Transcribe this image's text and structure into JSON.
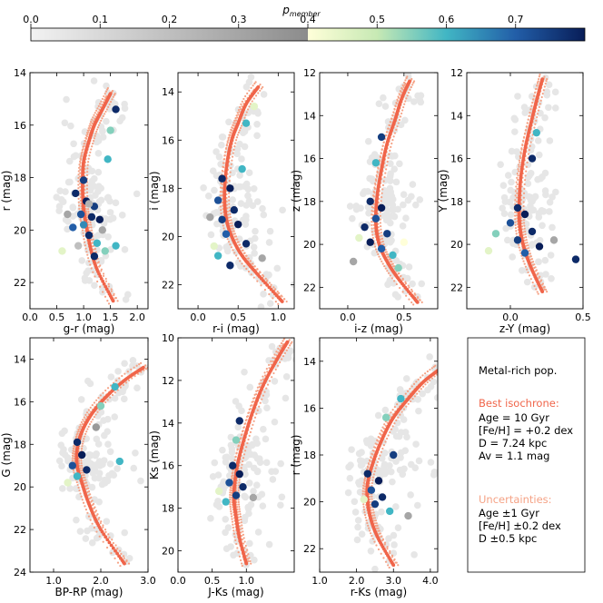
{
  "colorbar": {
    "label": "p_member",
    "label_main": "p",
    "label_sub": "member",
    "ticks": [
      "0.0",
      "0.1",
      "0.2",
      "0.3",
      "0.4",
      "0.5",
      "0.6",
      "0.7"
    ],
    "range": [
      0.0,
      0.8
    ],
    "split": 0.4
  },
  "colors": {
    "isochrone": "#f0654a",
    "isochrone_light": "#f5a285",
    "best_title": "#f0654a",
    "unc_title": "#f5a285",
    "background_star": "#e6e6e6"
  },
  "chart_data": [
    {
      "type": "scatter",
      "name": "panel-g-r",
      "xlabel": "g-r (mag)",
      "ylabel": "r (mag)",
      "xlim": [
        0.0,
        2.2
      ],
      "ylim": [
        23.0,
        14.0
      ],
      "xticks": [
        "0.0",
        "0.5",
        "1.0",
        "1.5",
        "2.0"
      ],
      "xtick_values": [
        0.0,
        0.5,
        1.0,
        1.5,
        2.0
      ],
      "yticks": [
        "14",
        "16",
        "18",
        "20",
        "22"
      ],
      "ytick_values": [
        14,
        16,
        18,
        20,
        22
      ],
      "members": [
        [
          0.85,
          18.6,
          0.78
        ],
        [
          1.05,
          18.9,
          0.8
        ],
        [
          1.2,
          19.1,
          0.75
        ],
        [
          0.95,
          19.4,
          0.72
        ],
        [
          1.15,
          19.5,
          0.78
        ],
        [
          1.0,
          19.8,
          0.65
        ],
        [
          1.3,
          19.6,
          0.8
        ],
        [
          0.8,
          19.9,
          0.7
        ],
        [
          1.1,
          20.2,
          0.78
        ],
        [
          1.25,
          20.5,
          0.6
        ],
        [
          1.4,
          20.8,
          0.55
        ],
        [
          1.2,
          21.0,
          0.78
        ],
        [
          1.5,
          16.2,
          0.55
        ],
        [
          1.6,
          15.4,
          0.78
        ],
        [
          1.45,
          17.3,
          0.6
        ],
        [
          1.0,
          18.1,
          0.75
        ],
        [
          0.7,
          19.4,
          0.3
        ],
        [
          1.6,
          20.6,
          0.6
        ],
        [
          0.6,
          20.8,
          0.45
        ],
        [
          1.35,
          20.0,
          0.3
        ],
        [
          1.1,
          19.0,
          0.25
        ],
        [
          0.9,
          20.6,
          0.2
        ]
      ],
      "iso_x": [
        1.55,
        1.25,
        1.12,
        1.05,
        1.0,
        0.98,
        1.0,
        1.1,
        1.2,
        1.35,
        1.5
      ],
      "iso_y": [
        22.7,
        21.5,
        20.6,
        19.8,
        19.2,
        18.3,
        17.4,
        16.6,
        16.0,
        15.4,
        14.8
      ]
    },
    {
      "type": "scatter",
      "name": "panel-r-i",
      "xlabel": "r-i (mag)",
      "ylabel": "i (mag)",
      "xlim": [
        -0.25,
        1.2
      ],
      "ylim": [
        23.0,
        13.2
      ],
      "xticks": [
        "0.0",
        "0.5",
        "1.0"
      ],
      "xtick_values": [
        0.0,
        0.5,
        1.0
      ],
      "yticks": [
        "14",
        "16",
        "18",
        "20",
        "22"
      ],
      "ytick_values": [
        14,
        16,
        18,
        20,
        22
      ],
      "members": [
        [
          0.3,
          17.6,
          0.78
        ],
        [
          0.4,
          18.0,
          0.8
        ],
        [
          0.25,
          18.5,
          0.72
        ],
        [
          0.45,
          18.9,
          0.78
        ],
        [
          0.3,
          19.3,
          0.75
        ],
        [
          0.5,
          19.5,
          0.8
        ],
        [
          0.35,
          19.9,
          0.7
        ],
        [
          0.6,
          20.3,
          0.78
        ],
        [
          0.25,
          20.8,
          0.6
        ],
        [
          0.4,
          21.2,
          0.78
        ],
        [
          0.55,
          17.2,
          0.6
        ],
        [
          0.6,
          15.3,
          0.6
        ],
        [
          0.7,
          14.6,
          0.45
        ],
        [
          0.8,
          20.9,
          0.3
        ],
        [
          0.15,
          19.2,
          0.3
        ],
        [
          0.2,
          20.4,
          0.45
        ]
      ],
      "iso_x": [
        1.05,
        0.75,
        0.55,
        0.42,
        0.35,
        0.33,
        0.36,
        0.42,
        0.5,
        0.6,
        0.75
      ],
      "iso_y": [
        22.7,
        21.6,
        20.8,
        20.0,
        19.2,
        18.2,
        17.0,
        16.0,
        15.3,
        14.5,
        13.8
      ]
    },
    {
      "type": "scatter",
      "name": "panel-i-z",
      "xlabel": "i-z (mag)",
      "ylabel": "z (mag)",
      "xlim": [
        -0.25,
        0.8
      ],
      "ylim": [
        23.0,
        12.0
      ],
      "xticks": [
        "0.0",
        "0.5"
      ],
      "xtick_values": [
        0.0,
        0.5
      ],
      "yticks": [
        "12",
        "14",
        "16",
        "18",
        "20",
        "22"
      ],
      "ytick_values": [
        12,
        14,
        16,
        18,
        20,
        22
      ],
      "members": [
        [
          0.2,
          18.0,
          0.78
        ],
        [
          0.3,
          18.3,
          0.8
        ],
        [
          0.25,
          18.8,
          0.72
        ],
        [
          0.15,
          19.2,
          0.78
        ],
        [
          0.35,
          19.5,
          0.75
        ],
        [
          0.2,
          19.9,
          0.8
        ],
        [
          0.3,
          20.2,
          0.7
        ],
        [
          0.4,
          20.5,
          0.6
        ],
        [
          0.1,
          19.7,
          0.45
        ],
        [
          0.25,
          16.2,
          0.6
        ],
        [
          0.3,
          15.0,
          0.75
        ],
        [
          0.45,
          21.1,
          0.55
        ],
        [
          0.05,
          20.8,
          0.3
        ],
        [
          0.5,
          19.9,
          0.4
        ]
      ],
      "iso_x": [
        0.62,
        0.45,
        0.35,
        0.28,
        0.25,
        0.26,
        0.3,
        0.35,
        0.42,
        0.48,
        0.55
      ],
      "iso_y": [
        22.7,
        21.6,
        20.8,
        20.0,
        19.0,
        17.8,
        16.5,
        15.3,
        14.2,
        13.2,
        12.4
      ]
    },
    {
      "type": "scatter",
      "name": "panel-z-Y",
      "xlabel": "z-Y (mag)",
      "ylabel": "Y (mag)",
      "xlim": [
        -0.3,
        0.5
      ],
      "ylim": [
        23.0,
        12.0
      ],
      "xticks": [
        "0.0",
        "0.5"
      ],
      "xtick_values": [
        0.0,
        0.5
      ],
      "yticks": [
        "12",
        "14",
        "16",
        "18",
        "20",
        "22"
      ],
      "ytick_values": [
        12,
        14,
        16,
        18,
        20,
        22
      ],
      "members": [
        [
          0.05,
          18.3,
          0.78
        ],
        [
          0.1,
          18.6,
          0.8
        ],
        [
          0.0,
          19.0,
          0.72
        ],
        [
          0.15,
          19.4,
          0.78
        ],
        [
          0.05,
          19.8,
          0.75
        ],
        [
          0.2,
          20.1,
          0.8
        ],
        [
          0.1,
          20.4,
          0.7
        ],
        [
          0.15,
          16.0,
          0.78
        ],
        [
          0.18,
          14.8,
          0.6
        ],
        [
          -0.1,
          19.5,
          0.55
        ],
        [
          0.3,
          19.8,
          0.3
        ],
        [
          -0.15,
          20.3,
          0.45
        ],
        [
          0.45,
          20.7,
          0.78
        ]
      ],
      "iso_x": [
        0.22,
        0.15,
        0.1,
        0.07,
        0.06,
        0.07,
        0.1,
        0.14,
        0.18,
        0.22
      ],
      "iso_y": [
        22.2,
        21.2,
        20.3,
        19.4,
        18.4,
        17.0,
        15.6,
        14.4,
        13.3,
        12.3
      ]
    },
    {
      "type": "scatter",
      "name": "panel-BP-RP",
      "xlabel": "BP-RP (mag)",
      "ylabel": "G (mag)",
      "xlim": [
        0.5,
        3.0
      ],
      "ylim": [
        24.0,
        13.0
      ],
      "xticks": [
        "1.0",
        "2.0",
        "3.0"
      ],
      "xtick_values": [
        1.0,
        2.0,
        3.0
      ],
      "yticks": [
        "14",
        "16",
        "18",
        "20",
        "22",
        "24"
      ],
      "ytick_values": [
        14,
        16,
        18,
        20,
        22,
        24
      ],
      "members": [
        [
          1.5,
          17.9,
          0.78
        ],
        [
          1.6,
          18.5,
          0.8
        ],
        [
          1.4,
          19.0,
          0.72
        ],
        [
          1.7,
          19.2,
          0.78
        ],
        [
          1.5,
          19.5,
          0.6
        ],
        [
          1.3,
          19.8,
          0.45
        ],
        [
          2.0,
          16.2,
          0.55
        ],
        [
          2.3,
          15.3,
          0.6
        ],
        [
          1.9,
          17.2,
          0.35
        ],
        [
          2.4,
          18.8,
          0.6
        ]
      ],
      "iso_x": [
        2.5,
        2.0,
        1.75,
        1.6,
        1.5,
        1.5,
        1.6,
        1.8,
        2.1,
        2.5,
        2.9
      ],
      "iso_y": [
        23.6,
        22.0,
        20.8,
        19.8,
        19.0,
        18.2,
        17.4,
        16.6,
        15.8,
        15.0,
        14.4
      ]
    },
    {
      "type": "scatter",
      "name": "panel-J-Ks",
      "xlabel": "J-Ks (mag)",
      "ylabel": "Ks (mag)",
      "xlim": [
        0.0,
        1.7
      ],
      "ylim": [
        21.0,
        10.0
      ],
      "xticks": [
        "0.0",
        "0.5",
        "1.0"
      ],
      "xtick_values": [
        0.0,
        0.5,
        1.0
      ],
      "yticks": [
        "10",
        "12",
        "14",
        "16",
        "18",
        "20"
      ],
      "ytick_values": [
        10,
        12,
        14,
        16,
        18,
        20
      ],
      "members": [
        [
          0.8,
          16.0,
          0.78
        ],
        [
          0.9,
          16.4,
          0.8
        ],
        [
          0.75,
          16.8,
          0.72
        ],
        [
          0.95,
          17.0,
          0.78
        ],
        [
          0.85,
          17.4,
          0.75
        ],
        [
          0.7,
          17.7,
          0.6
        ],
        [
          0.6,
          17.2,
          0.45
        ],
        [
          0.85,
          14.8,
          0.55
        ],
        [
          0.9,
          13.9,
          0.78
        ],
        [
          1.1,
          17.5,
          0.3
        ]
      ],
      "iso_x": [
        1.0,
        0.9,
        0.85,
        0.82,
        0.83,
        0.88,
        0.98,
        1.1,
        1.25,
        1.45,
        1.6
      ],
      "iso_y": [
        20.6,
        19.4,
        18.4,
        17.6,
        16.8,
        15.8,
        14.6,
        13.4,
        12.2,
        11.0,
        10.2
      ]
    },
    {
      "type": "scatter",
      "name": "panel-r-Ks",
      "xlabel": "r-Ks (mag)",
      "ylabel": "r (mag)",
      "xlim": [
        1.0,
        4.2
      ],
      "ylim": [
        23.0,
        13.0
      ],
      "xticks": [
        "1.0",
        "2.0",
        "3.0",
        "4.0"
      ],
      "xtick_values": [
        1.0,
        2.0,
        3.0,
        4.0
      ],
      "yticks": [
        "14",
        "16",
        "18",
        "20",
        "22"
      ],
      "ytick_values": [
        14,
        16,
        18,
        20,
        22
      ],
      "members": [
        [
          2.3,
          18.8,
          0.78
        ],
        [
          2.6,
          19.1,
          0.8
        ],
        [
          2.4,
          19.5,
          0.72
        ],
        [
          2.7,
          19.8,
          0.78
        ],
        [
          2.5,
          20.1,
          0.75
        ],
        [
          2.9,
          20.4,
          0.6
        ],
        [
          2.2,
          19.9,
          0.45
        ],
        [
          2.8,
          16.4,
          0.55
        ],
        [
          3.2,
          15.6,
          0.6
        ],
        [
          3.0,
          18.0,
          0.75
        ],
        [
          3.4,
          20.6,
          0.3
        ]
      ],
      "iso_x": [
        3.0,
        2.6,
        2.4,
        2.3,
        2.3,
        2.45,
        2.7,
        3.0,
        3.4,
        3.8,
        4.2
      ],
      "iso_y": [
        22.7,
        21.6,
        20.8,
        20.0,
        19.2,
        18.3,
        17.3,
        16.4,
        15.6,
        14.9,
        14.4
      ]
    }
  ],
  "info": {
    "title": "Metal-rich pop.",
    "best_title": "Best isochrone:",
    "best_lines": [
      "Age = 10 Gyr",
      "[Fe/H] = +0.2 dex",
      "D = 7.24 kpc",
      "Av = 1.1 mag"
    ],
    "unc_title": "Uncertainties:",
    "unc_lines": [
      "Age ±1 Gyr",
      "[Fe/H] ±0.2 dex",
      "D ±0.5 kpc"
    ]
  }
}
